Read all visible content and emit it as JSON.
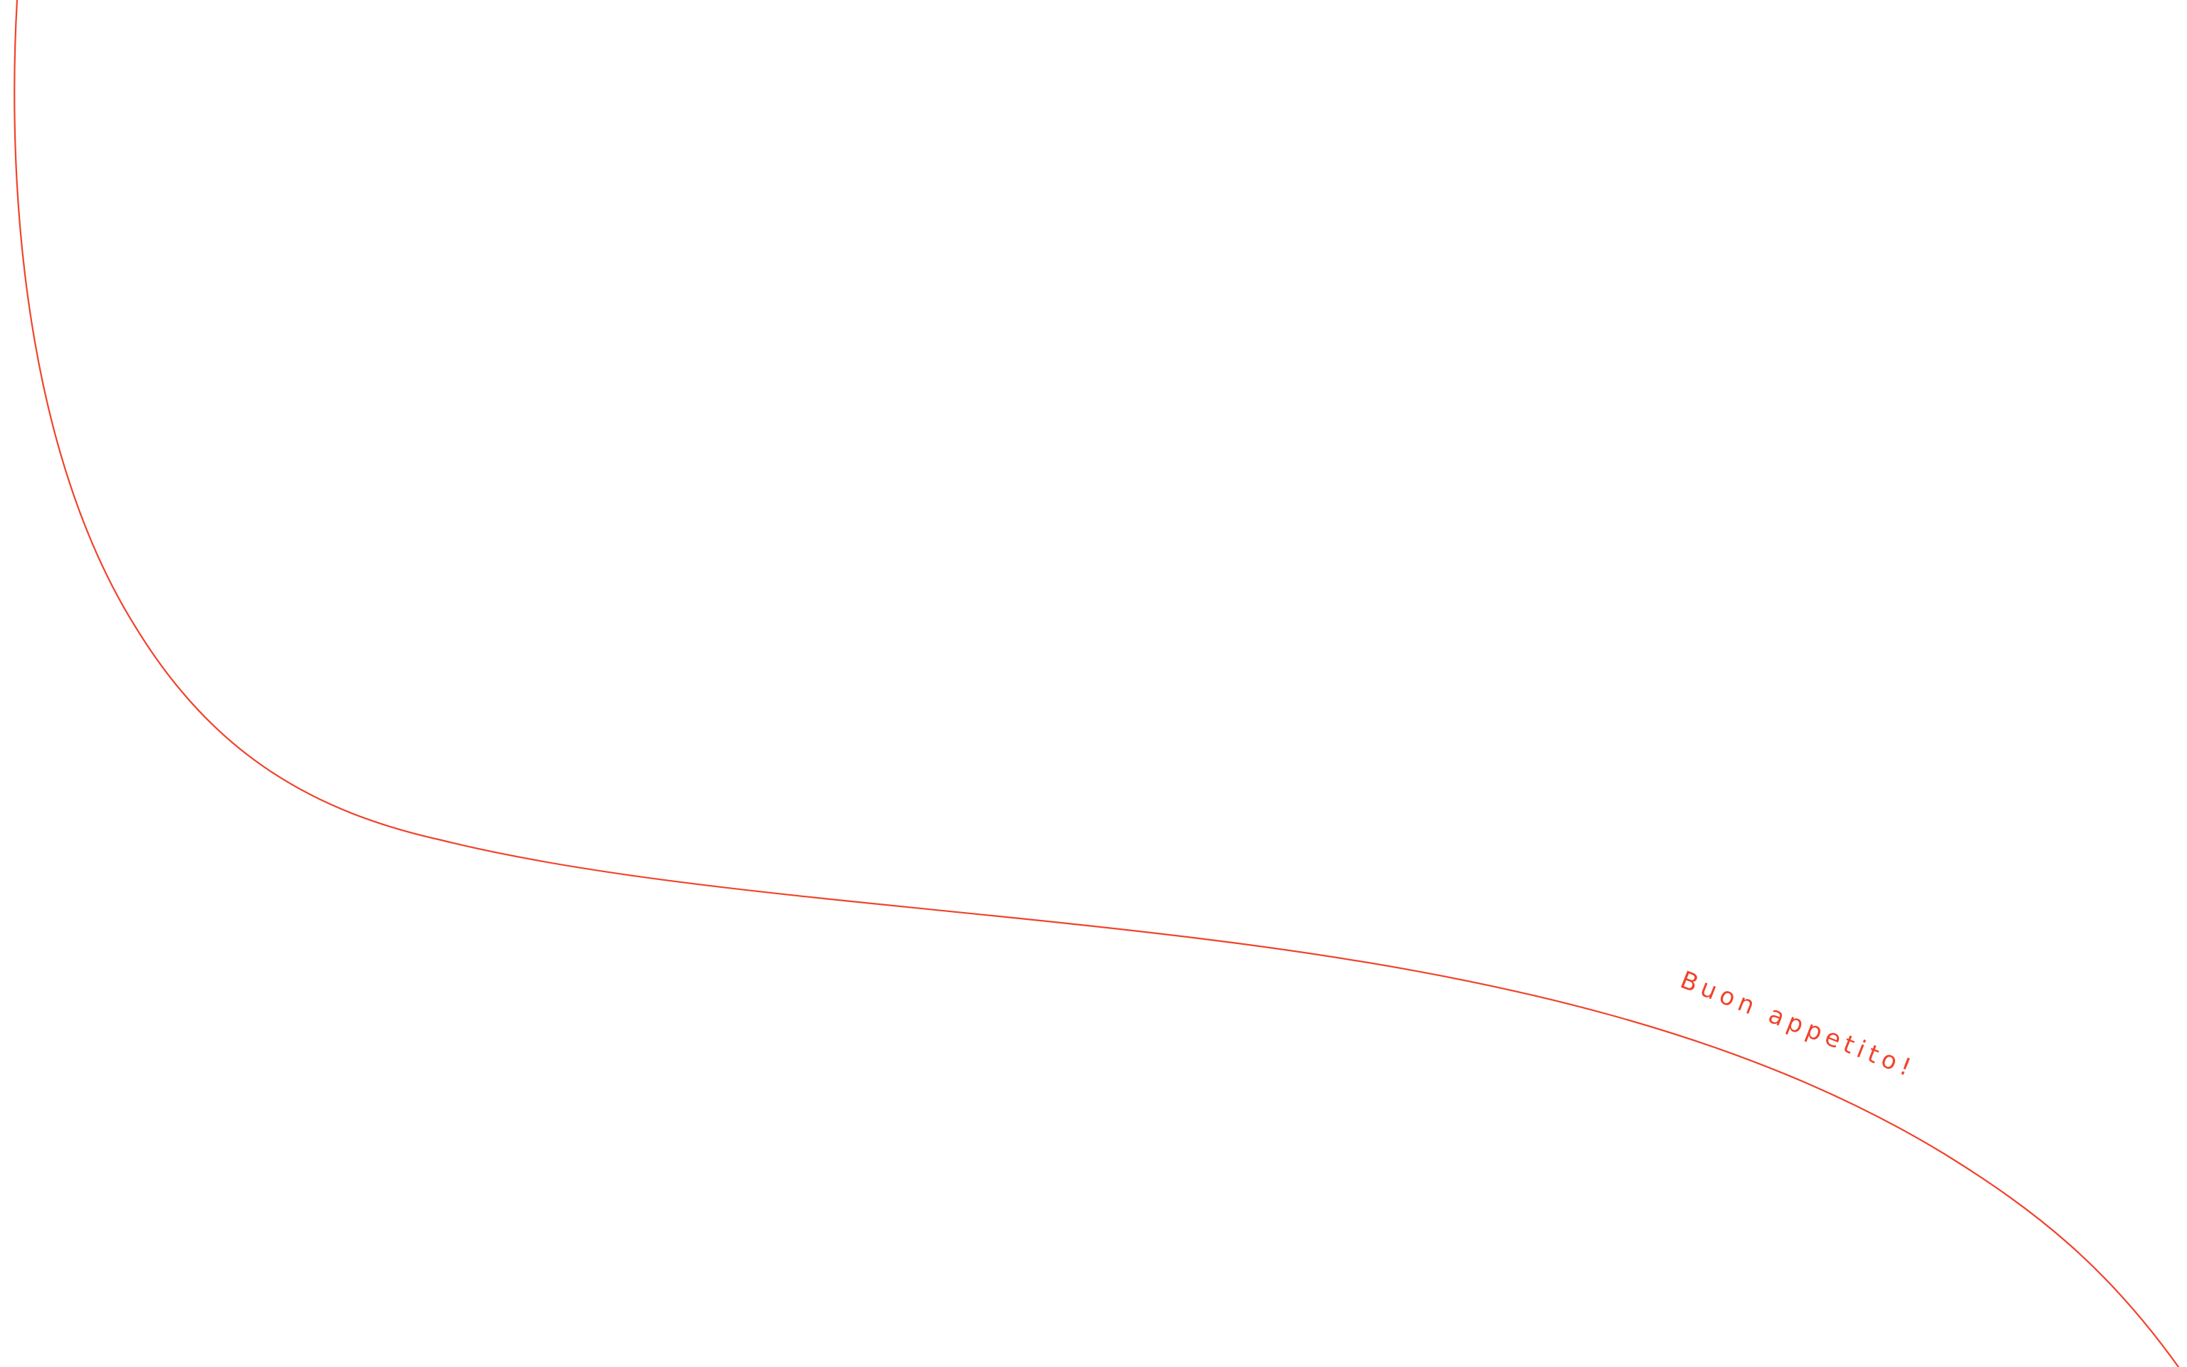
{
  "theme": {
    "background": "#ffffff",
    "accent": "#f0432b"
  },
  "decoration": {
    "caption": "Buon appetito!"
  }
}
